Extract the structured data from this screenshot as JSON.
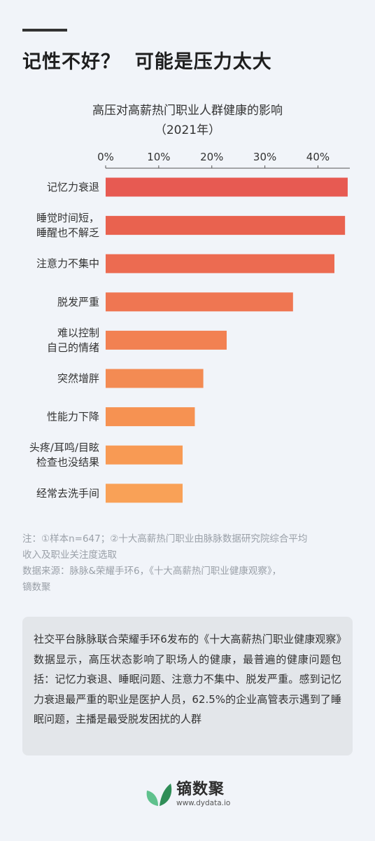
{
  "header": {
    "headline": "记性不好？  可能是压力太大"
  },
  "chart_data": {
    "type": "bar",
    "orientation": "horizontal",
    "title": "高压对高薪热门职业人群健康的影响",
    "subtitle": "（2021年）",
    "xlim": [
      0,
      46
    ],
    "ticks": [
      0,
      10,
      20,
      30,
      40
    ],
    "tick_labels": [
      "0%",
      "10%",
      "20%",
      "30%",
      "40%"
    ],
    "categories": [
      [
        "记忆力衰退"
      ],
      [
        "睡觉时间短，",
        "睡醒也不解乏"
      ],
      [
        "注意力不集中"
      ],
      [
        "脱发严重"
      ],
      [
        "难以控制",
        "自己的情绪"
      ],
      [
        "突然增胖"
      ],
      [
        "性能力下降"
      ],
      [
        "头疼/耳鸣/目眩",
        "检查也没结果"
      ],
      [
        "经常去洗手间"
      ]
    ],
    "values": [
      45.6,
      45.1,
      43.1,
      35.3,
      22.8,
      18.4,
      16.8,
      14.5,
      14.5
    ],
    "bar_colors": [
      "#e75a52",
      "#e9624f",
      "#ec6b51",
      "#ef7652",
      "#f28152",
      "#f38b53",
      "#f69252",
      "#f89a54",
      "#f9a157"
    ],
    "grid": false,
    "legend": "none"
  },
  "notes": {
    "line1": "注：①样本n=647；②十大高薪热门职业由脉脉数据研究院综合平均",
    "line2": "收入及职业关注度选取",
    "line3": "数据来源：脉脉&荣耀手环6，《十大高薪热门职业健康观察》，",
    "line4": "镝数聚"
  },
  "summary": {
    "text": "社交平台脉脉联合荣耀手环6发布的《十大高薪热门职业健康观察》数据显示，高压状态影响了职场人的健康，最普遍的健康问题包括：记忆力衰退、睡眠问题、注意力不集中、脱发严重。感到记忆力衰退最严重的职业是医护人员，62.5%的企业高管表示遇到了睡眠问题，主播是最受脱发困扰的人群"
  },
  "brand": {
    "name": "镝数聚",
    "url": "www.dydata.io",
    "icon": "leaf-logo-icon",
    "color_light": "#5fc18d",
    "color_dark": "#2f8d57"
  }
}
